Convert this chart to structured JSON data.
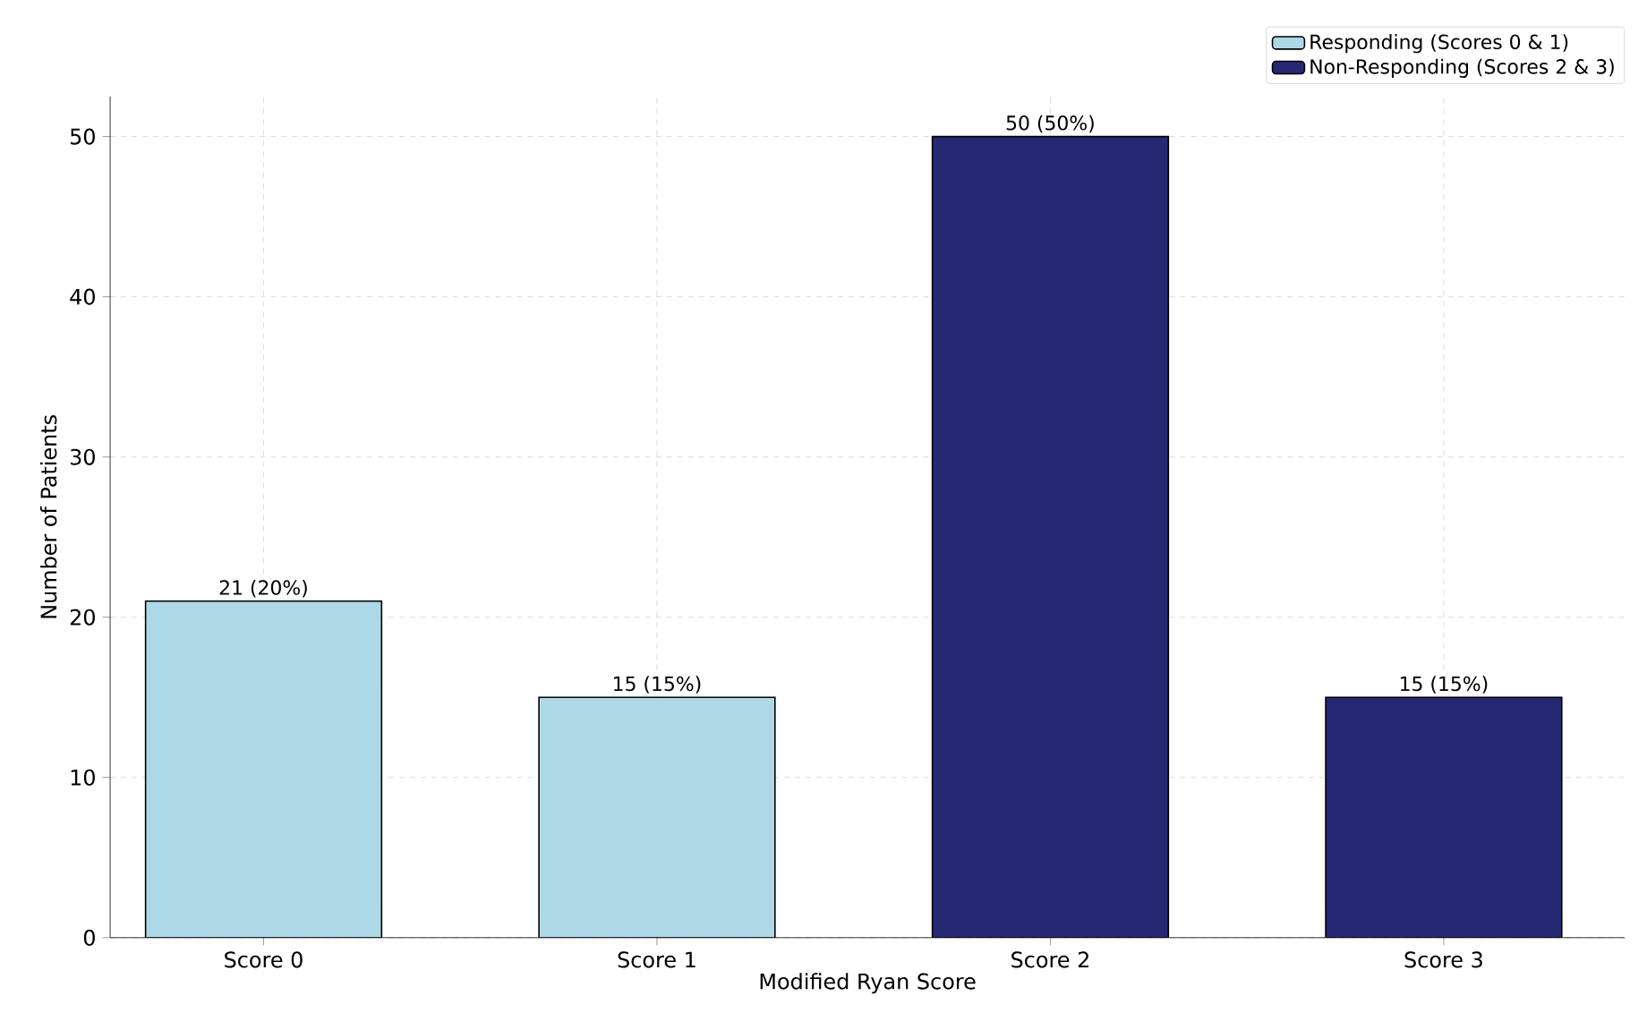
{
  "chart_data": {
    "type": "bar",
    "xlabel": "Modified Ryan Score",
    "ylabel": "Number of Patients",
    "categories": [
      "Score 0",
      "Score 1",
      "Score 2",
      "Score 3"
    ],
    "series": [
      {
        "name": "Responding (Scores 0 & 1)",
        "color": "#add8e6",
        "values": [
          21,
          15,
          null,
          null
        ],
        "value_labels": [
          "21 (20%)",
          "15 (15%)",
          null,
          null
        ]
      },
      {
        "name": "Non-Responding (Scores 2 & 3)",
        "color": "#262872",
        "values": [
          null,
          null,
          50,
          15
        ],
        "value_labels": [
          null,
          null,
          "50 (50%)",
          "15 (15%)"
        ]
      }
    ],
    "ylim": [
      0,
      52.5
    ],
    "yticks": [
      0,
      10,
      20,
      30,
      40,
      50
    ],
    "grid": true,
    "legend": "top right"
  }
}
